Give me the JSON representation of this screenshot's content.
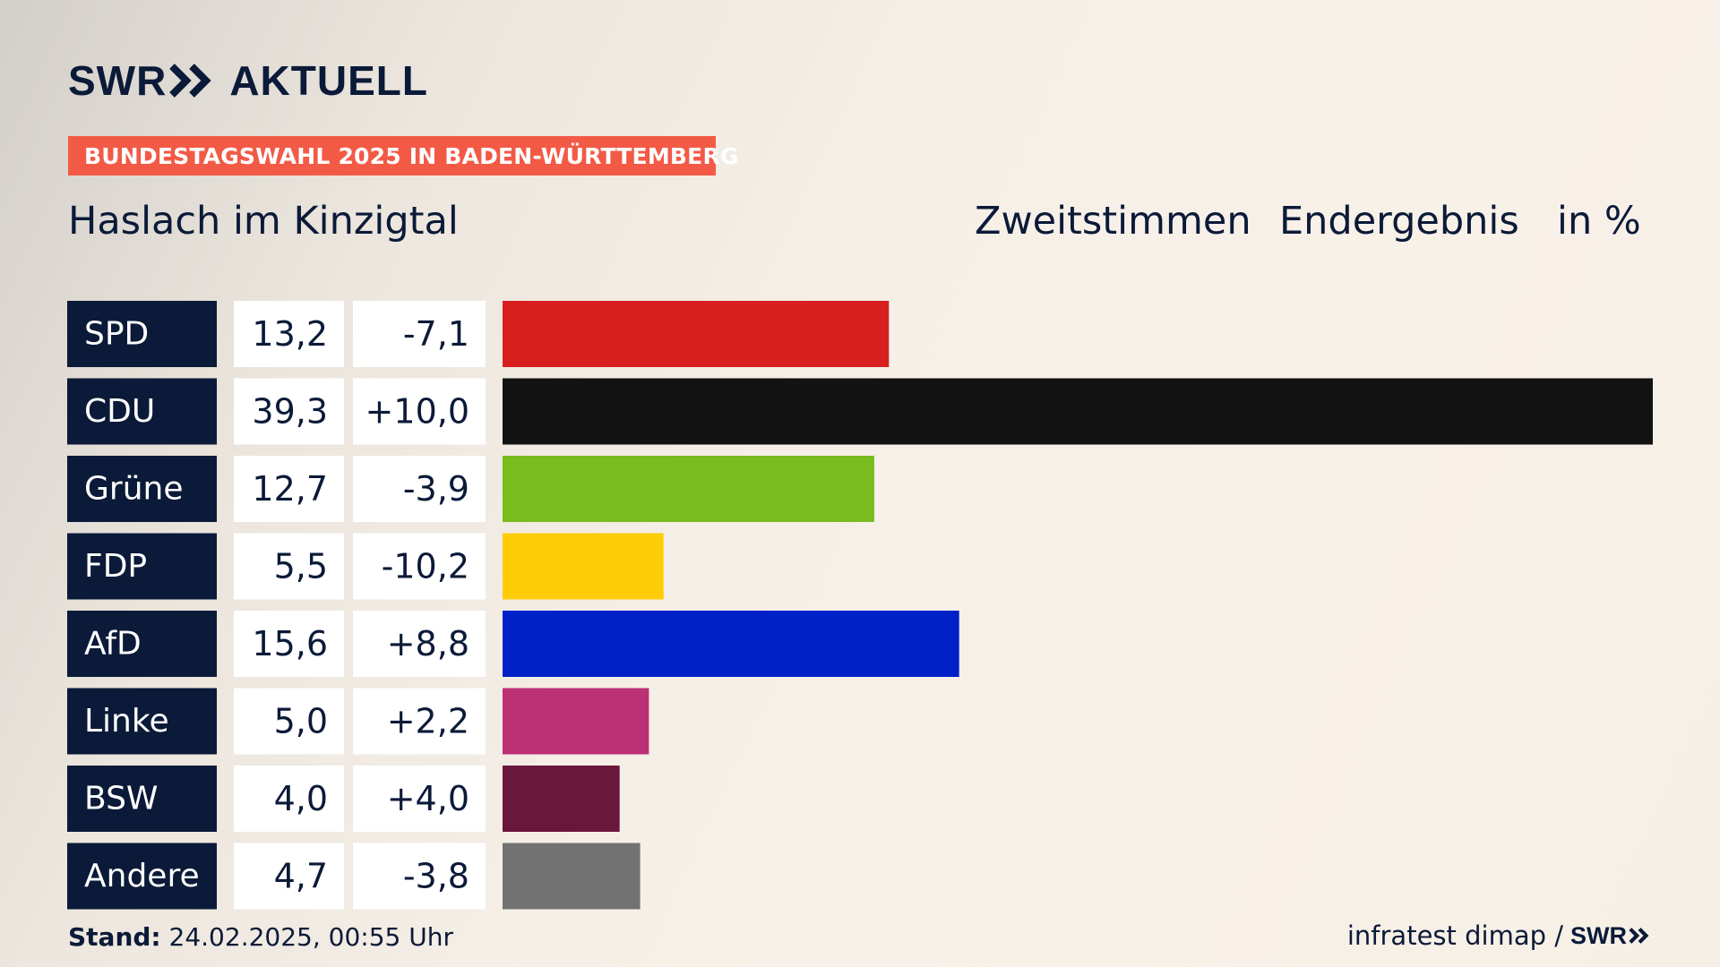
{
  "brand": {
    "swr": "SWR",
    "aktuell": "AKTUELL",
    "footer_logo": "SWR"
  },
  "banner": "BUNDESTAGSWAHL 2025 IN BADEN-WÜRTTEMBERG",
  "place": "Haslach im Kinzigtal",
  "header": {
    "vote_type": "Zweitstimmen",
    "status": "Endergebnis",
    "unit": "in %"
  },
  "footer": {
    "stand_label": "Stand:",
    "stand_value": "24.02.2025, 00:55 Uhr",
    "source": "infratest dimap /"
  },
  "colors": {
    "navy": "#0b1a38",
    "accent": "#f25a46"
  },
  "chart_data": {
    "type": "bar",
    "orientation": "horizontal",
    "xlim": [
      0,
      39.3
    ],
    "categories": [
      "SPD",
      "CDU",
      "Grüne",
      "FDP",
      "AfD",
      "Linke",
      "BSW",
      "Andere"
    ],
    "values": [
      13.2,
      39.3,
      12.7,
      5.5,
      15.6,
      5.0,
      4.0,
      4.7
    ],
    "value_labels": [
      "13,2",
      "39,3",
      "12,7",
      "5,5",
      "15,6",
      "5,0",
      "4,0",
      "4,7"
    ],
    "change_labels": [
      "-7,1",
      "+10,0",
      "-3,9",
      "-10,2",
      "+8,8",
      "+2,2",
      "+4,0",
      "-3,8"
    ],
    "changes": [
      -7.1,
      10.0,
      -3.9,
      -10.2,
      8.8,
      2.2,
      4.0,
      -3.8
    ],
    "colors": [
      "#d81f20",
      "#121212",
      "#78bc1e",
      "#ffcc08",
      "#0020c8",
      "#bc3075",
      "#6a173c",
      "#727272"
    ]
  }
}
